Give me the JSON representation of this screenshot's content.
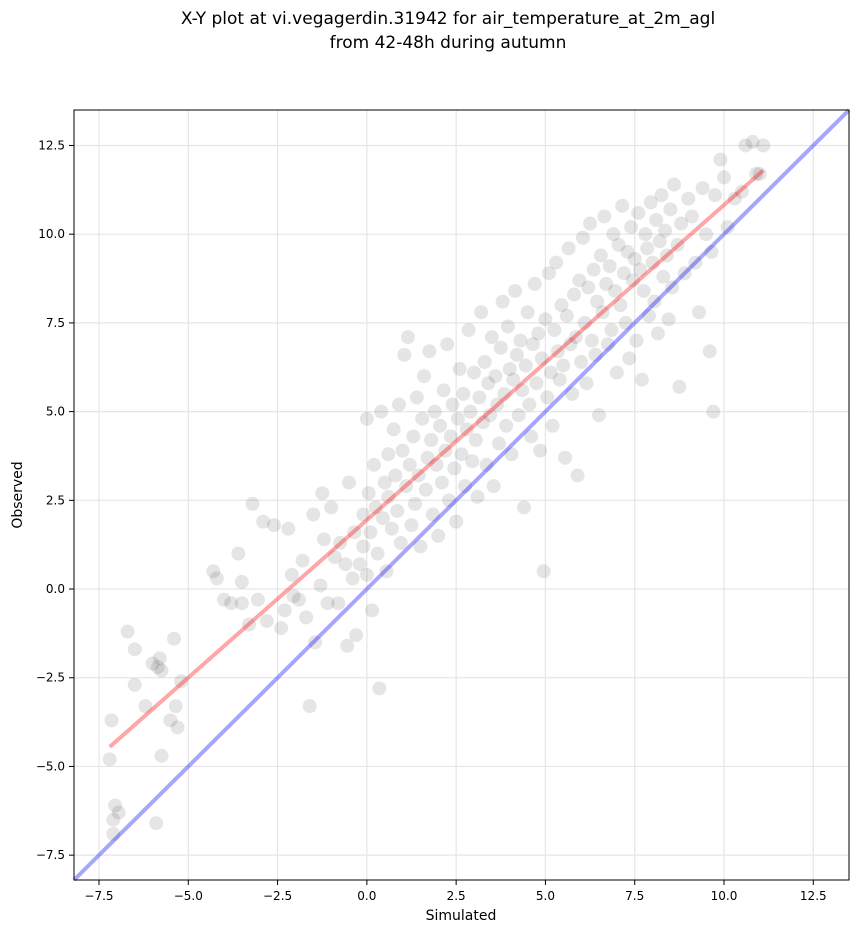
{
  "chart_data": {
    "type": "scatter",
    "title_lines": [
      "X-Y plot at vi.vegagerdin.31942 for air_temperature_at_2m_agl",
      "from 42-48h during autumn"
    ],
    "xlabel": "Simulated",
    "ylabel": "Observed",
    "xlim": [
      -8.2,
      13.5
    ],
    "ylim": [
      -8.2,
      13.5
    ],
    "xticks": [
      -7.5,
      -5.0,
      -2.5,
      0.0,
      2.5,
      5.0,
      7.5,
      10.0,
      12.5
    ],
    "yticks": [
      -7.5,
      -5.0,
      -2.5,
      0.0,
      2.5,
      5.0,
      7.5,
      10.0,
      12.5
    ],
    "xtick_labels": [
      "−7.5",
      "−5.0",
      "−2.5",
      "0.0",
      "2.5",
      "5.0",
      "7.5",
      "10.0",
      "12.5"
    ],
    "ytick_labels": [
      "−7.5",
      "−5.0",
      "−2.5",
      "0.0",
      "2.5",
      "5.0",
      "7.5",
      "10.0",
      "12.5"
    ],
    "grid": true,
    "colors": {
      "points": "#000000",
      "identity_line": "#0000ff",
      "fit_line": "#ff0000",
      "grid": "#e6e6e6"
    },
    "identity_line": {
      "x": [
        -8.2,
        13.5
      ],
      "y": [
        -8.2,
        13.5
      ]
    },
    "fit_line": {
      "x": [
        -7.2,
        11.1
      ],
      "y": [
        -4.45,
        11.8
      ]
    },
    "series": [
      {
        "points": [
          [
            -7.2,
            -4.8
          ],
          [
            -7.15,
            -3.7
          ],
          [
            -7.1,
            -6.5
          ],
          [
            -7.05,
            -6.1
          ],
          [
            -6.95,
            -6.3
          ],
          [
            -7.1,
            -6.9
          ],
          [
            -6.7,
            -1.2
          ],
          [
            -6.5,
            -2.7
          ],
          [
            -6.5,
            -1.7
          ],
          [
            -6.2,
            -3.3
          ],
          [
            -6.0,
            -2.1
          ],
          [
            -5.85,
            -2.2
          ],
          [
            -5.8,
            -1.95
          ],
          [
            -5.75,
            -2.3
          ],
          [
            -5.9,
            -6.6
          ],
          [
            -5.75,
            -4.7
          ],
          [
            -5.5,
            -3.7
          ],
          [
            -5.35,
            -3.3
          ],
          [
            -5.3,
            -3.9
          ],
          [
            -5.4,
            -1.4
          ],
          [
            -5.2,
            -2.6
          ],
          [
            -4.3,
            0.5
          ],
          [
            -4.2,
            0.3
          ],
          [
            -4.0,
            -0.3
          ],
          [
            -3.8,
            -0.4
          ],
          [
            -3.6,
            1.0
          ],
          [
            -3.5,
            -0.4
          ],
          [
            -3.5,
            0.2
          ],
          [
            -3.3,
            -1.0
          ],
          [
            -3.2,
            2.4
          ],
          [
            -3.05,
            -0.3
          ],
          [
            -2.9,
            1.9
          ],
          [
            -2.8,
            -0.9
          ],
          [
            -2.6,
            1.8
          ],
          [
            -2.4,
            -1.1
          ],
          [
            -2.3,
            -0.6
          ],
          [
            -2.2,
            1.7
          ],
          [
            -2.1,
            0.4
          ],
          [
            -2.05,
            -0.2
          ],
          [
            -1.9,
            -0.3
          ],
          [
            -1.8,
            0.8
          ],
          [
            -1.7,
            -0.8
          ],
          [
            -1.6,
            -3.3
          ],
          [
            -1.5,
            2.1
          ],
          [
            -1.45,
            -1.5
          ],
          [
            -1.3,
            0.1
          ],
          [
            -1.25,
            2.7
          ],
          [
            -1.2,
            1.4
          ],
          [
            -1.1,
            -0.4
          ],
          [
            -1.0,
            2.3
          ],
          [
            -0.9,
            0.9
          ],
          [
            -0.8,
            -0.4
          ],
          [
            -0.75,
            1.3
          ],
          [
            -0.6,
            0.7
          ],
          [
            -0.55,
            -1.6
          ],
          [
            -0.5,
            3.0
          ],
          [
            -0.4,
            0.3
          ],
          [
            -0.35,
            1.6
          ],
          [
            -0.3,
            -1.3
          ],
          [
            -0.2,
            0.7
          ],
          [
            -0.1,
            2.1
          ],
          [
            -0.1,
            1.2
          ],
          [
            0.0,
            0.4
          ],
          [
            0.0,
            4.8
          ],
          [
            0.05,
            2.7
          ],
          [
            0.1,
            1.6
          ],
          [
            0.15,
            -0.6
          ],
          [
            0.2,
            3.5
          ],
          [
            0.25,
            2.3
          ],
          [
            0.3,
            1.0
          ],
          [
            0.35,
            -2.8
          ],
          [
            0.4,
            5.0
          ],
          [
            0.45,
            2.0
          ],
          [
            0.5,
            3.0
          ],
          [
            0.55,
            0.5
          ],
          [
            0.6,
            3.8
          ],
          [
            0.6,
            2.6
          ],
          [
            0.7,
            1.7
          ],
          [
            0.75,
            4.5
          ],
          [
            0.8,
            3.2
          ],
          [
            0.85,
            2.2
          ],
          [
            0.9,
            5.2
          ],
          [
            0.95,
            1.3
          ],
          [
            1.0,
            3.9
          ],
          [
            1.05,
            6.6
          ],
          [
            1.1,
            2.9
          ],
          [
            1.15,
            7.1
          ],
          [
            1.2,
            3.5
          ],
          [
            1.25,
            1.8
          ],
          [
            1.3,
            4.3
          ],
          [
            1.35,
            2.4
          ],
          [
            1.4,
            5.4
          ],
          [
            1.45,
            3.2
          ],
          [
            1.5,
            1.2
          ],
          [
            1.55,
            4.8
          ],
          [
            1.6,
            6.0
          ],
          [
            1.65,
            2.8
          ],
          [
            1.7,
            3.7
          ],
          [
            1.75,
            6.7
          ],
          [
            1.8,
            4.2
          ],
          [
            1.85,
            2.1
          ],
          [
            1.9,
            5.0
          ],
          [
            1.95,
            3.5
          ],
          [
            2.0,
            1.5
          ],
          [
            2.05,
            4.6
          ],
          [
            2.1,
            3.0
          ],
          [
            2.15,
            5.6
          ],
          [
            2.2,
            3.9
          ],
          [
            2.25,
            6.9
          ],
          [
            2.3,
            2.5
          ],
          [
            2.35,
            4.3
          ],
          [
            2.4,
            5.2
          ],
          [
            2.45,
            3.4
          ],
          [
            2.5,
            1.9
          ],
          [
            2.55,
            4.8
          ],
          [
            2.6,
            6.2
          ],
          [
            2.65,
            3.8
          ],
          [
            2.7,
            5.5
          ],
          [
            2.75,
            2.9
          ],
          [
            2.8,
            4.5
          ],
          [
            2.85,
            7.3
          ],
          [
            2.9,
            5.0
          ],
          [
            2.95,
            3.6
          ],
          [
            3.0,
            6.1
          ],
          [
            3.05,
            4.2
          ],
          [
            3.1,
            2.6
          ],
          [
            3.15,
            5.4
          ],
          [
            3.2,
            7.8
          ],
          [
            3.25,
            4.7
          ],
          [
            3.3,
            6.4
          ],
          [
            3.35,
            3.5
          ],
          [
            3.4,
            5.8
          ],
          [
            3.45,
            4.9
          ],
          [
            3.5,
            7.1
          ],
          [
            3.55,
            2.9
          ],
          [
            3.6,
            6.0
          ],
          [
            3.65,
            5.2
          ],
          [
            3.7,
            4.1
          ],
          [
            3.75,
            6.8
          ],
          [
            3.8,
            8.1
          ],
          [
            3.85,
            5.5
          ],
          [
            3.9,
            4.6
          ],
          [
            3.95,
            7.4
          ],
          [
            4.0,
            6.2
          ],
          [
            4.05,
            3.8
          ],
          [
            4.1,
            5.9
          ],
          [
            4.15,
            8.4
          ],
          [
            4.2,
            6.6
          ],
          [
            4.25,
            4.9
          ],
          [
            4.3,
            7.0
          ],
          [
            4.35,
            5.6
          ],
          [
            4.4,
            2.3
          ],
          [
            4.45,
            6.3
          ],
          [
            4.5,
            7.8
          ],
          [
            4.55,
            5.2
          ],
          [
            4.6,
            4.3
          ],
          [
            4.65,
            6.9
          ],
          [
            4.7,
            8.6
          ],
          [
            4.75,
            5.8
          ],
          [
            4.8,
            7.2
          ],
          [
            4.85,
            3.9
          ],
          [
            4.9,
            6.5
          ],
          [
            4.95,
            0.5
          ],
          [
            5.0,
            7.6
          ],
          [
            5.05,
            5.4
          ],
          [
            5.1,
            8.9
          ],
          [
            5.15,
            6.1
          ],
          [
            5.2,
            4.6
          ],
          [
            5.25,
            7.3
          ],
          [
            5.3,
            9.2
          ],
          [
            5.35,
            6.7
          ],
          [
            5.4,
            5.9
          ],
          [
            5.45,
            8.0
          ],
          [
            5.5,
            6.3
          ],
          [
            5.55,
            3.7
          ],
          [
            5.6,
            7.7
          ],
          [
            5.65,
            9.6
          ],
          [
            5.7,
            6.9
          ],
          [
            5.75,
            5.5
          ],
          [
            5.8,
            8.3
          ],
          [
            5.85,
            7.1
          ],
          [
            5.9,
            3.2
          ],
          [
            5.95,
            8.7
          ],
          [
            6.0,
            6.4
          ],
          [
            6.05,
            9.9
          ],
          [
            6.1,
            7.5
          ],
          [
            6.15,
            5.8
          ],
          [
            6.2,
            8.5
          ],
          [
            6.25,
            10.3
          ],
          [
            6.3,
            7.0
          ],
          [
            6.35,
            9.0
          ],
          [
            6.4,
            6.6
          ],
          [
            6.45,
            8.1
          ],
          [
            6.5,
            4.9
          ],
          [
            6.55,
            9.4
          ],
          [
            6.6,
            7.8
          ],
          [
            6.65,
            10.5
          ],
          [
            6.7,
            8.6
          ],
          [
            6.75,
            6.9
          ],
          [
            6.8,
            9.1
          ],
          [
            6.85,
            7.3
          ],
          [
            6.9,
            10.0
          ],
          [
            6.95,
            8.4
          ],
          [
            7.0,
            6.1
          ],
          [
            7.05,
            9.7
          ],
          [
            7.1,
            8.0
          ],
          [
            7.15,
            10.8
          ],
          [
            7.2,
            8.9
          ],
          [
            7.25,
            7.5
          ],
          [
            7.3,
            9.5
          ],
          [
            7.35,
            6.5
          ],
          [
            7.4,
            10.2
          ],
          [
            7.45,
            8.7
          ],
          [
            7.5,
            9.3
          ],
          [
            7.55,
            7.0
          ],
          [
            7.6,
            10.6
          ],
          [
            7.65,
            9.0
          ],
          [
            7.7,
            5.9
          ],
          [
            7.75,
            8.4
          ],
          [
            7.8,
            10.0
          ],
          [
            7.85,
            9.6
          ],
          [
            7.9,
            7.7
          ],
          [
            7.95,
            10.9
          ],
          [
            8.0,
            9.2
          ],
          [
            8.05,
            8.1
          ],
          [
            8.1,
            10.4
          ],
          [
            8.15,
            7.2
          ],
          [
            8.2,
            9.8
          ],
          [
            8.25,
            11.1
          ],
          [
            8.3,
            8.8
          ],
          [
            8.35,
            10.1
          ],
          [
            8.4,
            9.4
          ],
          [
            8.45,
            7.6
          ],
          [
            8.5,
            10.7
          ],
          [
            8.55,
            8.5
          ],
          [
            8.6,
            11.4
          ],
          [
            8.7,
            9.7
          ],
          [
            8.75,
            5.7
          ],
          [
            8.8,
            10.3
          ],
          [
            8.9,
            8.9
          ],
          [
            9.0,
            11.0
          ],
          [
            9.1,
            10.5
          ],
          [
            9.2,
            9.2
          ],
          [
            9.3,
            7.8
          ],
          [
            9.4,
            11.3
          ],
          [
            9.5,
            10.0
          ],
          [
            9.6,
            6.7
          ],
          [
            9.65,
            9.5
          ],
          [
            9.75,
            11.1
          ],
          [
            9.7,
            5.0
          ],
          [
            9.9,
            12.1
          ],
          [
            10.0,
            11.6
          ],
          [
            10.1,
            10.2
          ],
          [
            10.3,
            11.0
          ],
          [
            10.5,
            11.2
          ],
          [
            10.6,
            12.5
          ],
          [
            10.8,
            12.6
          ],
          [
            10.9,
            11.7
          ],
          [
            11.0,
            11.7
          ],
          [
            11.1,
            12.5
          ]
        ]
      }
    ]
  }
}
